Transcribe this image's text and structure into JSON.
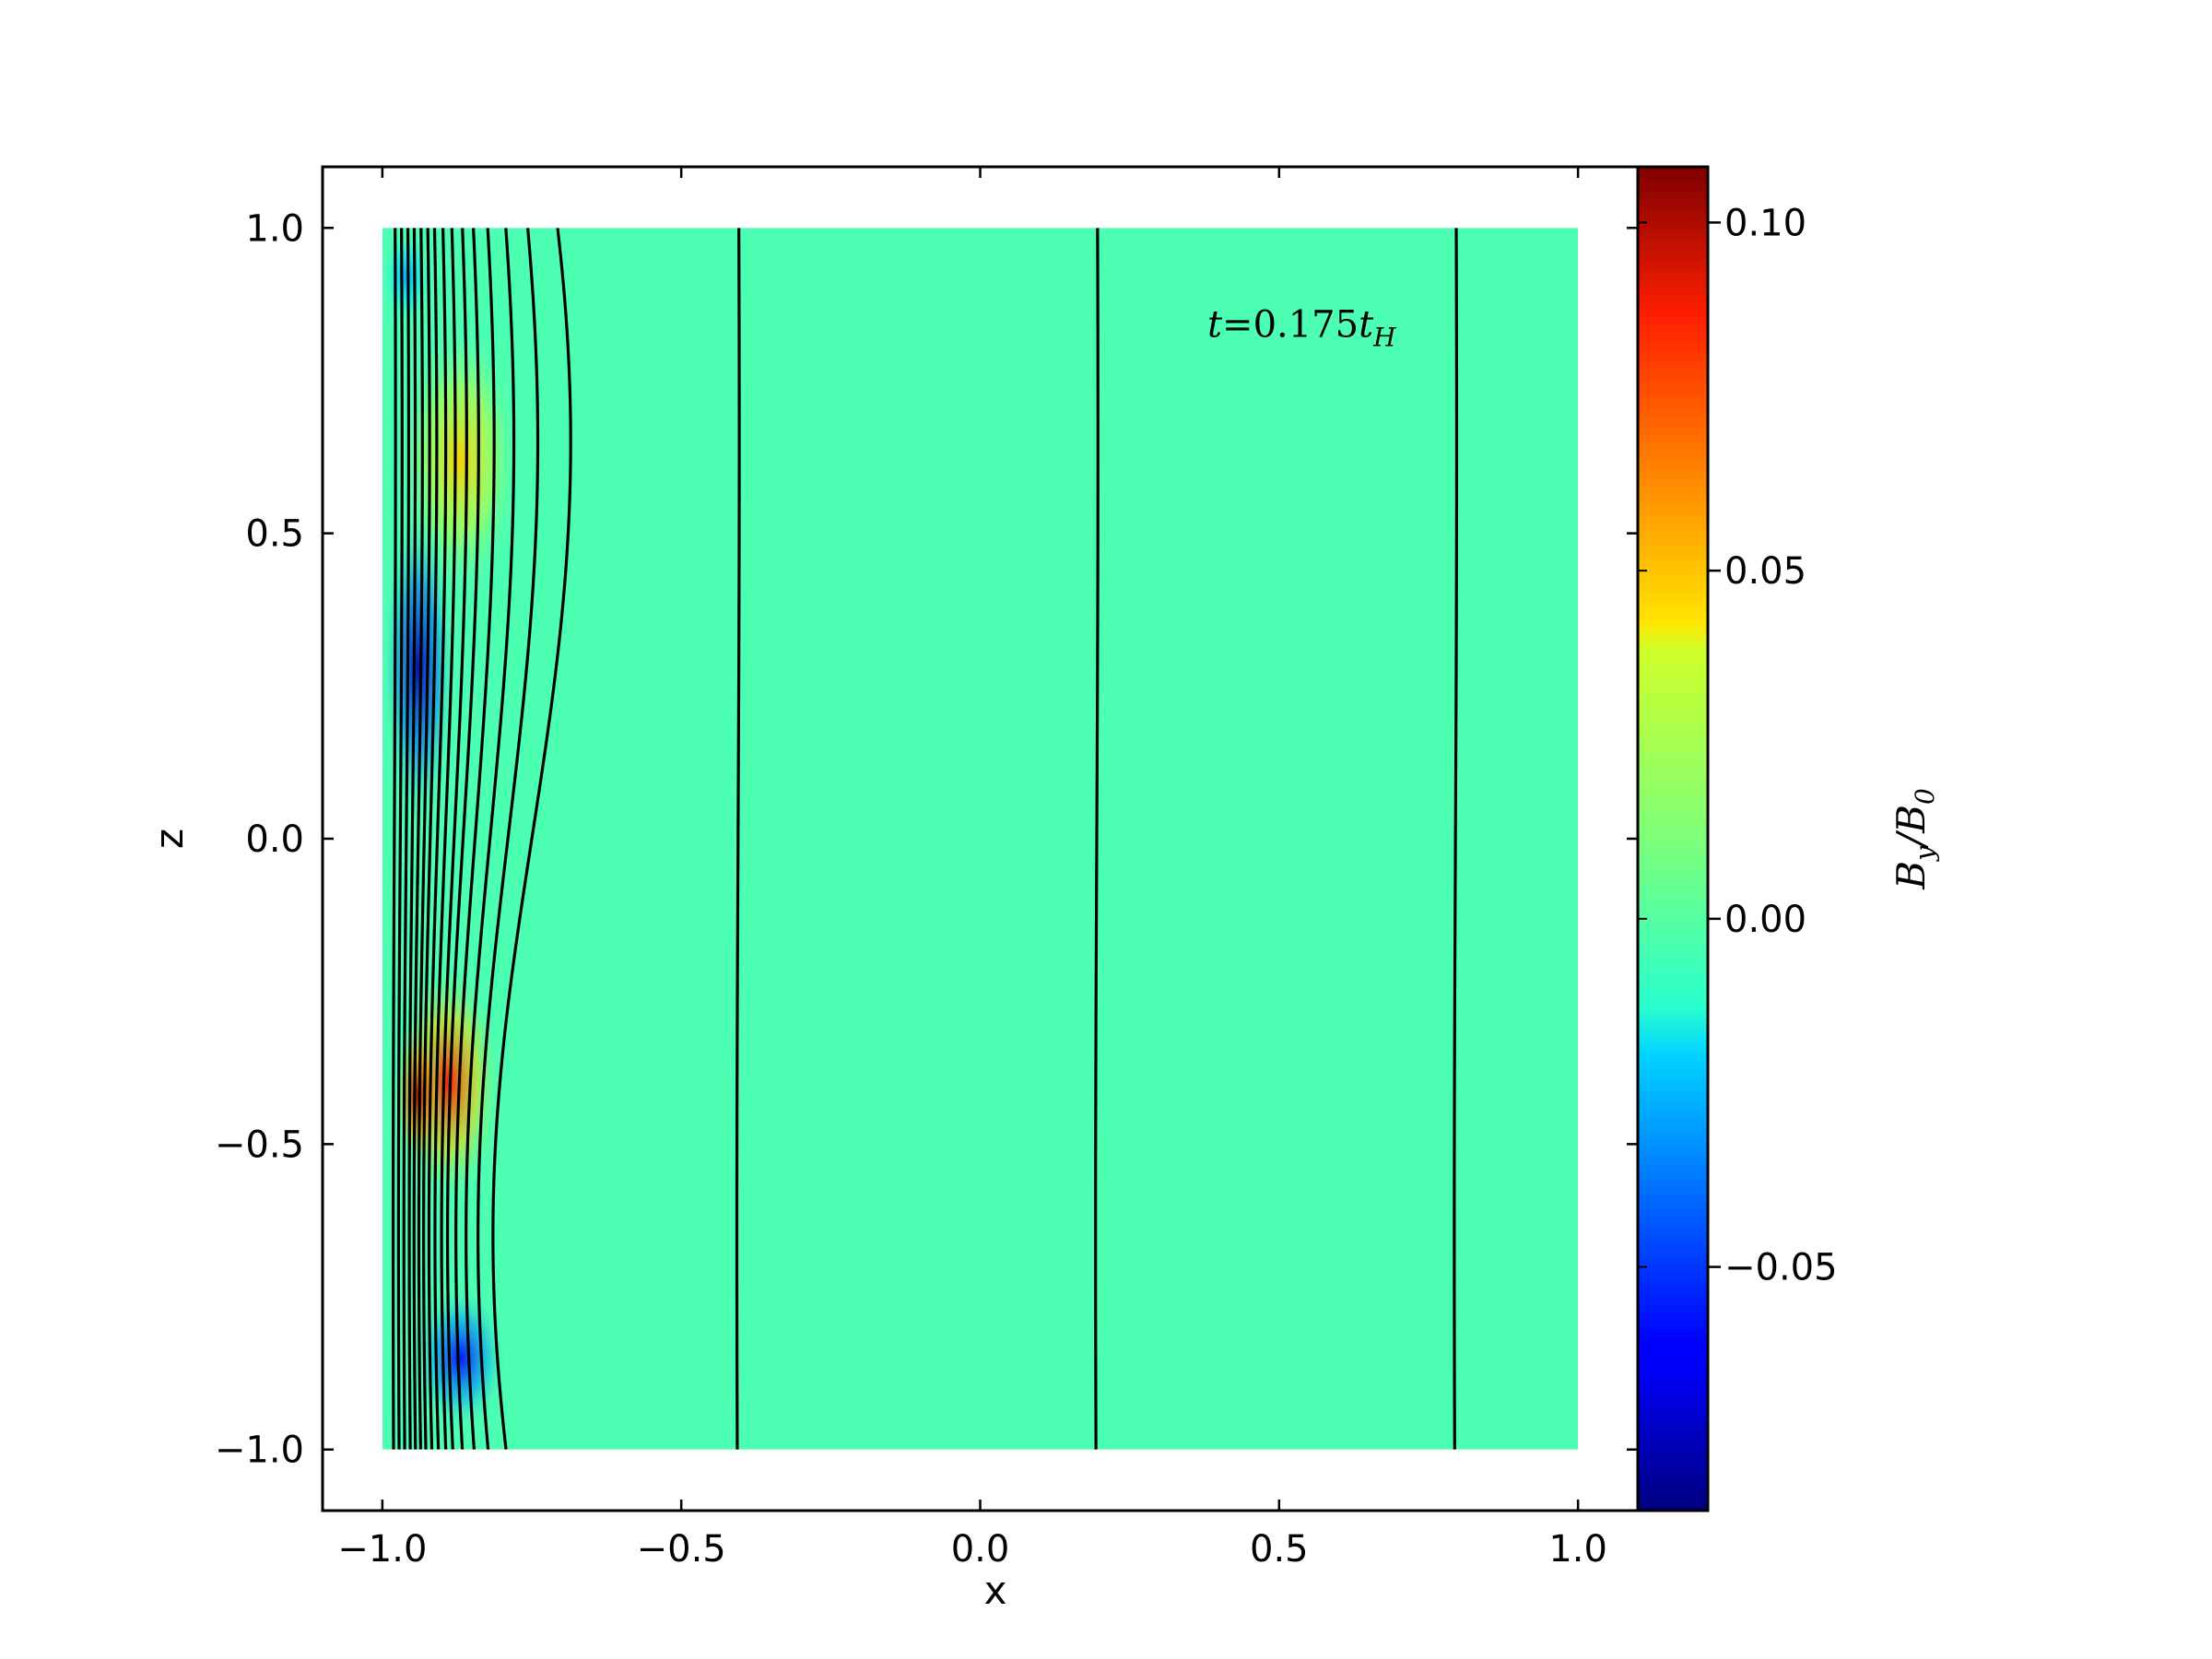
{
  "chart_data": {
    "type": "heatmap",
    "title": "",
    "xlabel": "x",
    "ylabel": "z",
    "xlim": [
      -1.1,
      1.1
    ],
    "ylim": [
      -1.1,
      1.1
    ],
    "data_extent": {
      "x": [
        -1.0,
        1.0
      ],
      "z": [
        -1.0,
        1.0
      ]
    },
    "x_ticks": [
      -1.0,
      -0.5,
      0.0,
      0.5,
      1.0
    ],
    "x_tick_labels": [
      "−1.0",
      "−0.5",
      "0.0",
      "0.5",
      "1.0"
    ],
    "y_ticks": [
      -1.0,
      -0.5,
      0.0,
      0.5,
      1.0
    ],
    "y_tick_labels": [
      "−1.0",
      "−0.5",
      "0.0",
      "0.5",
      "1.0"
    ],
    "grid": false,
    "colormap": "jet",
    "colorbar": {
      "label_main": "B",
      "label_sub": "y",
      "label_den": "B",
      "label_den_sub": "0",
      "range": [
        -0.085,
        0.108
      ],
      "ticks": [
        0.1,
        0.05,
        0.0,
        -0.05
      ],
      "tick_labels": [
        "0.10",
        "0.05",
        "0.00",
        "−0.05"
      ]
    },
    "annotation": {
      "prefix": "t",
      "equals": "=",
      "value": "0.175",
      "var": "t",
      "sub": "H",
      "x": 0.38,
      "z": 0.84
    },
    "background_value": 0.002,
    "field_features": [
      {
        "x": -0.87,
        "z": 0.62,
        "value": 0.045
      },
      {
        "x": -0.89,
        "z": -0.4,
        "value": 0.08
      },
      {
        "x": -0.94,
        "z": -0.42,
        "value": 0.1
      },
      {
        "x": -0.94,
        "z": 0.28,
        "value": -0.075
      },
      {
        "x": -0.87,
        "z": -0.85,
        "value": -0.06
      },
      {
        "x": -0.96,
        "z": 0.92,
        "value": -0.03
      }
    ],
    "contour_lines": [
      {
        "x0": -0.75,
        "amp": 0.065
      },
      {
        "x0": -0.79,
        "amp": 0.05
      },
      {
        "x0": -0.82,
        "amp": 0.04
      },
      {
        "x0": -0.845,
        "amp": 0.032
      },
      {
        "x0": -0.865,
        "amp": 0.026
      },
      {
        "x0": -0.88,
        "amp": 0.021
      },
      {
        "x0": -0.895,
        "amp": 0.017
      },
      {
        "x0": -0.908,
        "amp": 0.014
      },
      {
        "x0": -0.92,
        "amp": 0.011
      },
      {
        "x0": -0.93,
        "amp": 0.009
      },
      {
        "x0": -0.94,
        "amp": 0.007
      },
      {
        "x0": -0.95,
        "amp": 0.005
      },
      {
        "x0": -0.96,
        "amp": 0.004
      },
      {
        "x0": -0.97,
        "amp": 0.003
      },
      {
        "x0": -0.98,
        "amp": 0.002
      },
      {
        "x0": -0.405,
        "amp": 0.002
      },
      {
        "x0": 0.195,
        "amp": 0.002
      },
      {
        "x0": 0.795,
        "amp": 0.002
      }
    ]
  }
}
